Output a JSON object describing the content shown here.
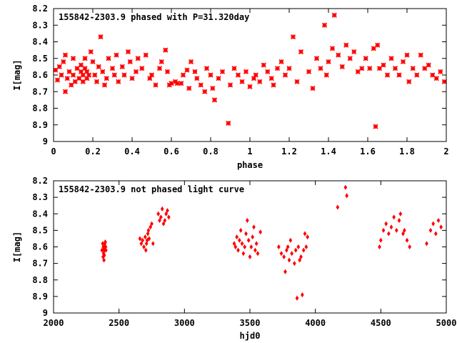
{
  "colors": {
    "points": "#ff0000",
    "frame": "#000000",
    "background": "#ffffff"
  },
  "chart_data": [
    {
      "type": "scatter",
      "title": "155842-2303.9 phased with P=31.320day",
      "xlabel": "phase",
      "ylabel": "I[mag]",
      "xlim": [
        0,
        2
      ],
      "ylim": [
        9,
        8.2
      ],
      "y_inverted": true,
      "grid": false,
      "marker": "cross",
      "xticks": [
        "0",
        "0.2",
        "0.4",
        "0.6",
        "0.8",
        "1",
        "1.2",
        "1.4",
        "1.6",
        "1.8",
        "2"
      ],
      "yticks": [
        "8.2",
        "8.3",
        "8.4",
        "8.5",
        "8.6",
        "8.7",
        "8.8",
        "8.9",
        "9"
      ],
      "x": [
        0.01,
        0.02,
        0.03,
        0.04,
        0.05,
        0.06,
        0.06,
        0.07,
        0.08,
        0.09,
        0.1,
        0.1,
        0.11,
        0.12,
        0.13,
        0.14,
        0.14,
        0.15,
        0.15,
        0.16,
        0.16,
        0.17,
        0.17,
        0.18,
        0.19,
        0.2,
        0.21,
        0.22,
        0.23,
        0.24,
        0.25,
        0.26,
        0.27,
        0.28,
        0.3,
        0.31,
        0.32,
        0.33,
        0.35,
        0.36,
        0.38,
        0.39,
        0.4,
        0.42,
        0.43,
        0.45,
        0.47,
        0.49,
        0.5,
        0.52,
        0.54,
        0.55,
        0.57,
        0.58,
        0.59,
        0.6,
        0.62,
        0.63,
        0.65,
        0.66,
        0.68,
        0.69,
        0.7,
        0.72,
        0.73,
        0.75,
        0.77,
        0.78,
        0.8,
        0.81,
        0.82,
        0.84,
        0.86,
        0.89,
        0.9,
        0.92,
        0.94,
        0.96,
        0.98,
        1.0,
        1.02,
        1.03,
        1.05,
        1.07,
        1.09,
        1.11,
        1.12,
        1.14,
        1.16,
        1.18,
        1.2,
        1.22,
        1.24,
        1.26,
        1.3,
        1.32,
        1.34,
        1.36,
        1.38,
        1.39,
        1.4,
        1.42,
        1.43,
        1.45,
        1.47,
        1.49,
        1.51,
        1.53,
        1.55,
        1.57,
        1.59,
        1.61,
        1.63,
        1.64,
        1.65,
        1.66,
        1.68,
        1.7,
        1.72,
        1.74,
        1.76,
        1.78,
        1.8,
        1.81,
        1.83,
        1.85,
        1.87,
        1.89,
        1.91,
        1.93,
        1.95,
        1.97,
        1.99
      ],
      "y": [
        8.57,
        8.63,
        8.55,
        8.6,
        8.52,
        8.7,
        8.48,
        8.62,
        8.58,
        8.66,
        8.5,
        8.6,
        8.64,
        8.56,
        8.62,
        8.58,
        8.54,
        8.6,
        8.64,
        8.5,
        8.56,
        8.62,
        8.58,
        8.6,
        8.46,
        8.52,
        8.6,
        8.64,
        8.55,
        8.37,
        8.58,
        8.66,
        8.62,
        8.5,
        8.56,
        8.6,
        8.48,
        8.64,
        8.55,
        8.6,
        8.46,
        8.52,
        8.62,
        8.58,
        8.5,
        8.56,
        8.48,
        8.62,
        8.6,
        8.66,
        8.56,
        8.52,
        8.45,
        8.58,
        8.66,
        8.65,
        8.64,
        8.65,
        8.65,
        8.6,
        8.57,
        8.68,
        8.52,
        8.58,
        8.62,
        8.66,
        8.7,
        8.56,
        8.6,
        8.68,
        8.75,
        8.62,
        8.58,
        8.89,
        8.66,
        8.56,
        8.6,
        8.64,
        8.58,
        8.67,
        8.62,
        8.6,
        8.64,
        8.54,
        8.58,
        8.62,
        8.66,
        8.56,
        8.52,
        8.6,
        8.56,
        8.37,
        8.64,
        8.46,
        8.58,
        8.68,
        8.5,
        8.56,
        8.3,
        8.6,
        8.52,
        8.44,
        8.24,
        8.48,
        8.55,
        8.42,
        8.5,
        8.46,
        8.58,
        8.56,
        8.5,
        8.56,
        8.44,
        8.91,
        8.42,
        8.56,
        8.54,
        8.6,
        8.5,
        8.56,
        8.6,
        8.52,
        8.48,
        8.64,
        8.56,
        8.6,
        8.48,
        8.56,
        8.54,
        8.6,
        8.62,
        8.58,
        8.64
      ]
    },
    {
      "type": "scatter",
      "title": "155842-2303.9 not phased light curve",
      "xlabel": "hjd0",
      "ylabel": "I[mag]",
      "xlim": [
        2000,
        5000
      ],
      "ylim": [
        9,
        8.2
      ],
      "y_inverted": true,
      "grid": false,
      "marker": "diamond",
      "xticks": [
        "2000",
        "2500",
        "3000",
        "3500",
        "4000",
        "4500",
        "5000"
      ],
      "yticks": [
        "8.2",
        "8.3",
        "8.4",
        "8.5",
        "8.6",
        "8.7",
        "8.8",
        "8.9",
        "9"
      ],
      "x": [
        2370,
        2375,
        2378,
        2380,
        2382,
        2383,
        2385,
        2386,
        2388,
        2390,
        2392,
        2395,
        2398,
        2400,
        2660,
        2670,
        2680,
        2690,
        2700,
        2705,
        2710,
        2715,
        2720,
        2725,
        2730,
        2740,
        2750,
        2760,
        2800,
        2810,
        2820,
        2830,
        2840,
        2850,
        2860,
        2870,
        2880,
        3380,
        3390,
        3400,
        3410,
        3420,
        3430,
        3440,
        3450,
        3460,
        3470,
        3480,
        3490,
        3500,
        3510,
        3520,
        3530,
        3540,
        3550,
        3560,
        3580,
        3720,
        3740,
        3760,
        3770,
        3780,
        3790,
        3800,
        3810,
        3820,
        3840,
        3850,
        3860,
        3870,
        3880,
        3890,
        3900,
        3910,
        3920,
        3930,
        3940,
        4170,
        4230,
        4240,
        4490,
        4500,
        4520,
        4540,
        4560,
        4580,
        4600,
        4620,
        4640,
        4650,
        4670,
        4680,
        4700,
        4720,
        4850,
        4880,
        4900,
        4920,
        4940,
        4960
      ],
      "y": [
        8.62,
        8.58,
        8.66,
        8.6,
        8.64,
        8.62,
        8.68,
        8.6,
        8.65,
        8.62,
        8.58,
        8.57,
        8.6,
        8.62,
        8.55,
        8.58,
        8.56,
        8.6,
        8.54,
        8.62,
        8.58,
        8.56,
        8.52,
        8.5,
        8.55,
        8.48,
        8.46,
        8.58,
        8.4,
        8.44,
        8.42,
        8.37,
        8.46,
        8.44,
        8.4,
        8.38,
        8.42,
        8.58,
        8.6,
        8.54,
        8.62,
        8.56,
        8.5,
        8.58,
        8.64,
        8.6,
        8.52,
        8.44,
        8.56,
        8.66,
        8.6,
        8.54,
        8.48,
        8.62,
        8.58,
        8.64,
        8.51,
        8.6,
        8.64,
        8.66,
        8.75,
        8.62,
        8.6,
        8.68,
        8.56,
        8.64,
        8.7,
        8.62,
        8.91,
        8.6,
        8.68,
        8.66,
        8.89,
        8.62,
        8.52,
        8.6,
        8.54,
        8.36,
        8.24,
        8.29,
        8.6,
        8.56,
        8.5,
        8.46,
        8.52,
        8.48,
        8.42,
        8.5,
        8.44,
        8.4,
        8.52,
        8.5,
        8.56,
        8.6,
        8.58,
        8.5,
        8.46,
        8.52,
        8.44,
        8.48
      ]
    }
  ]
}
